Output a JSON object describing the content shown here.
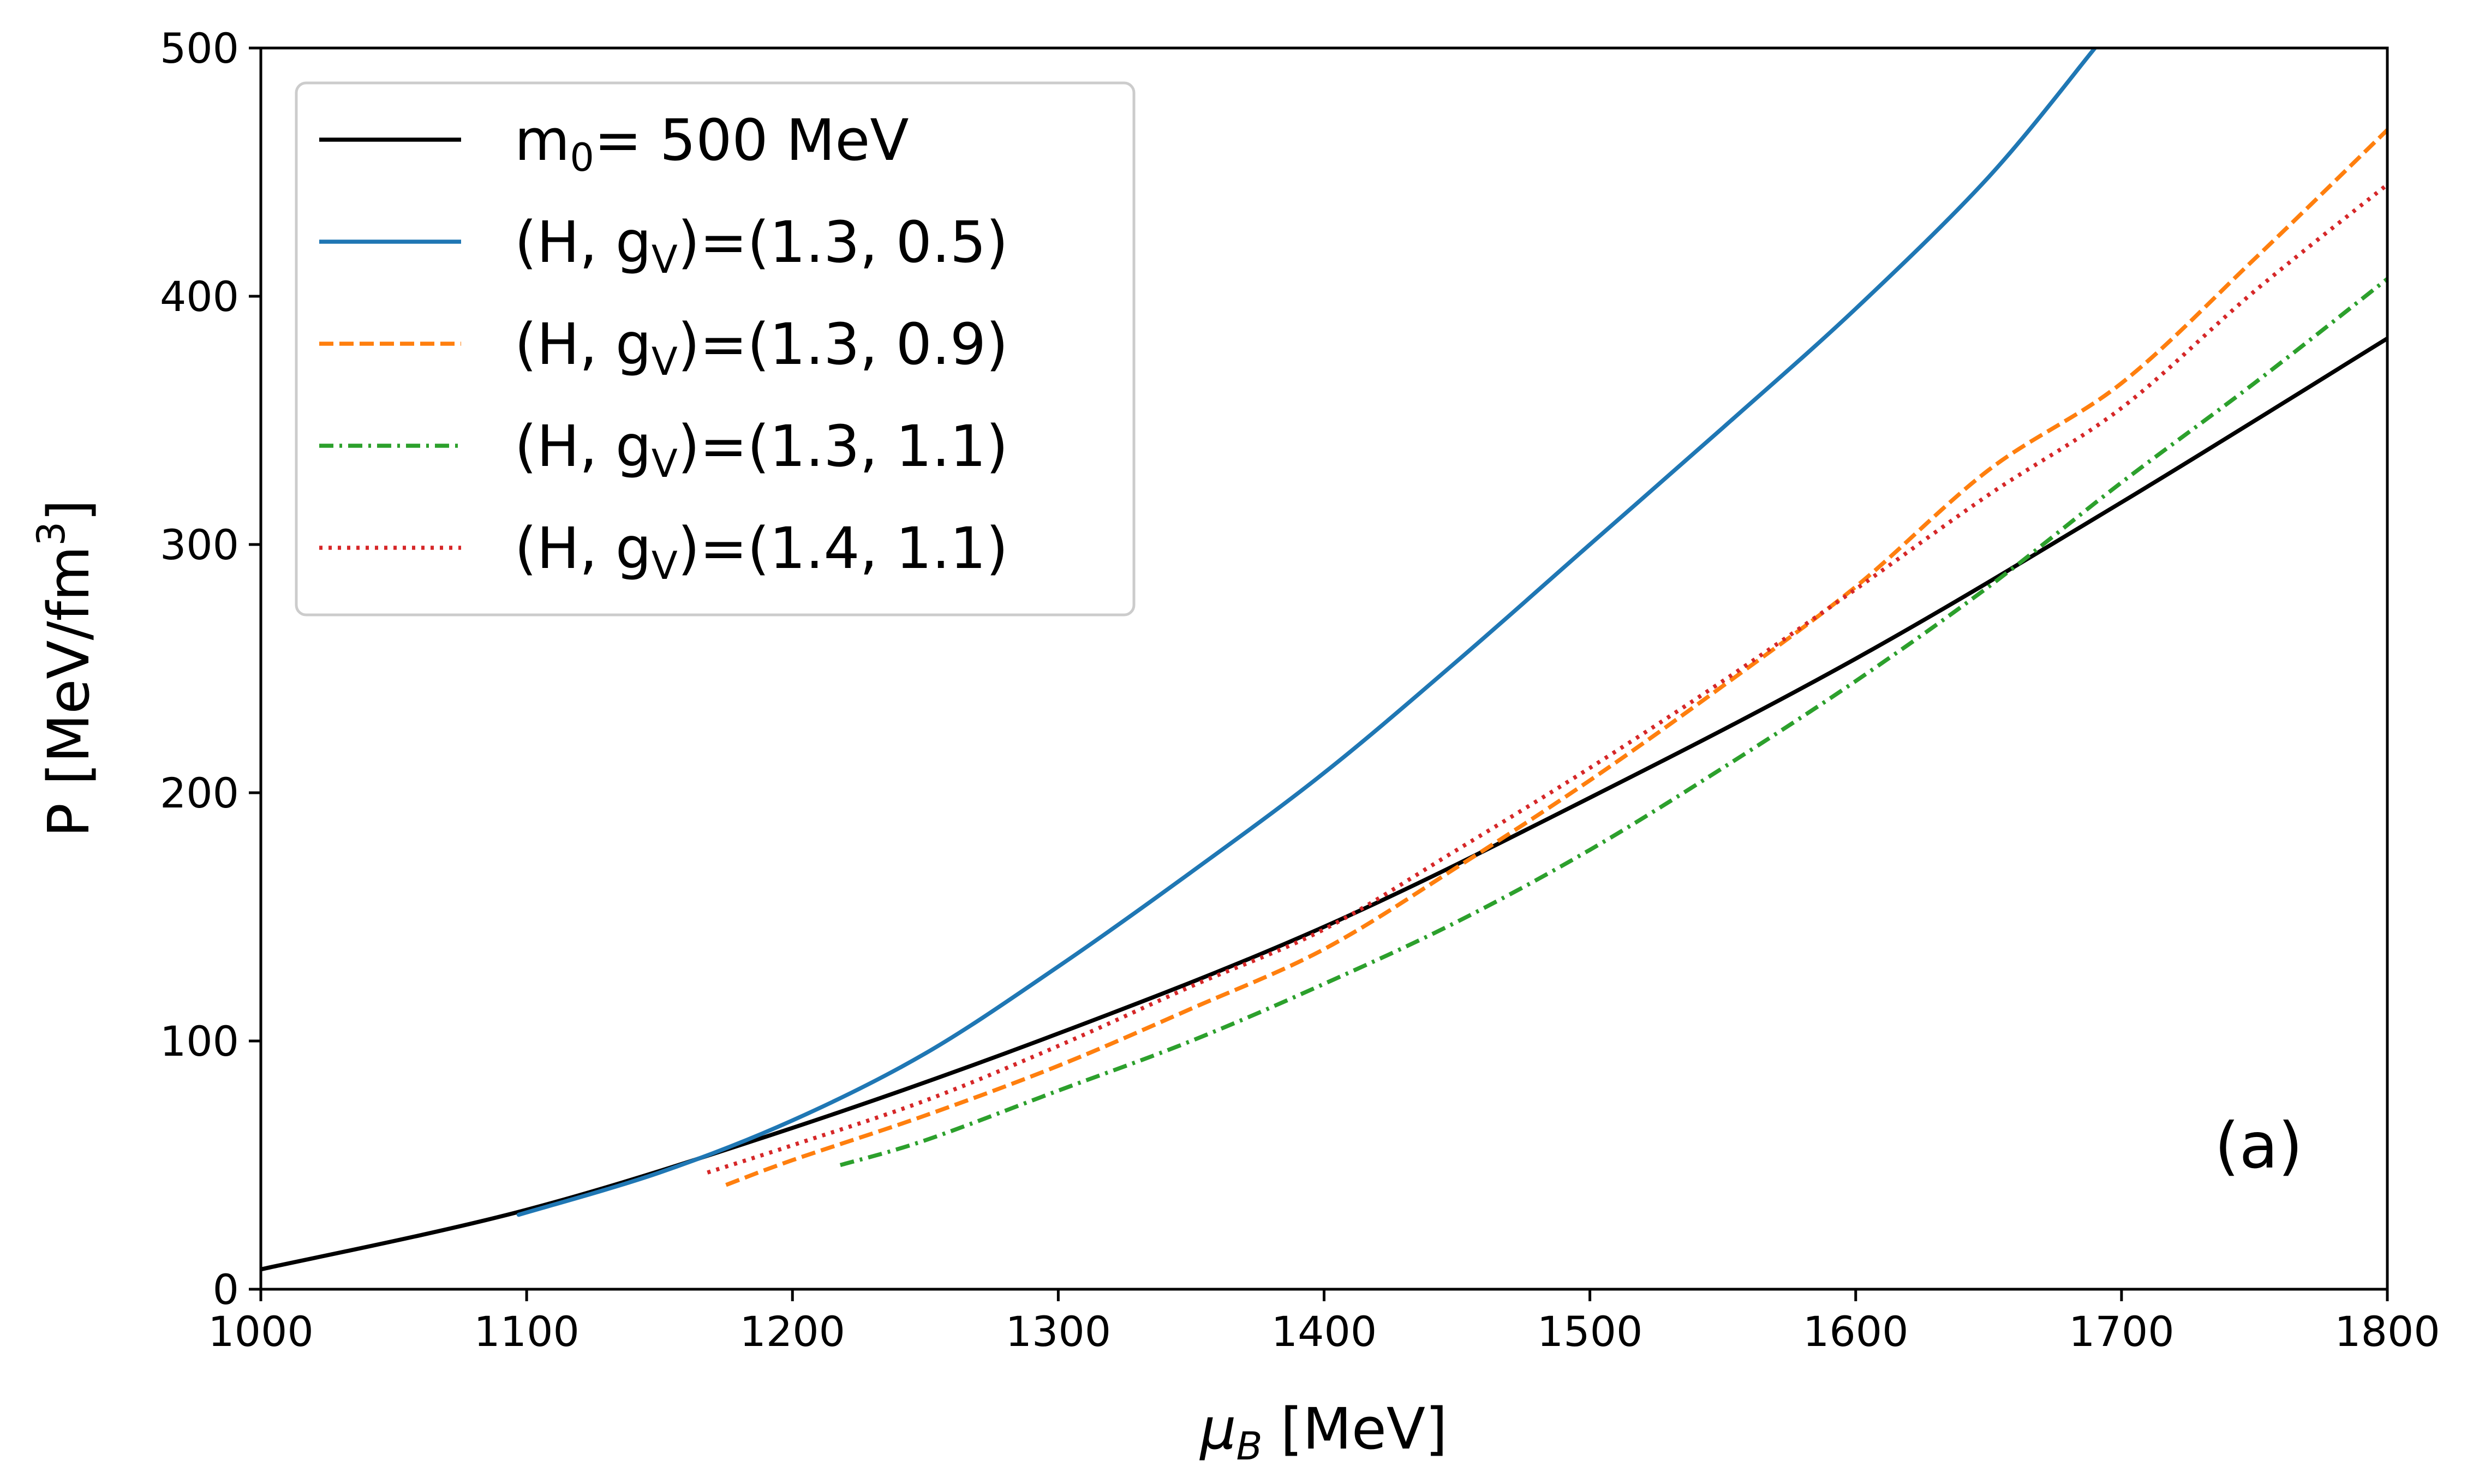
{
  "chart_data": {
    "type": "line",
    "title": "",
    "xlabel": {
      "main": "μ",
      "sub": "B",
      "unit": " [MeV]"
    },
    "ylabel": {
      "main": "P [MeV/fm",
      "sup": "3",
      "end": "]"
    },
    "xlim": [
      1000,
      1800
    ],
    "ylim": [
      0,
      500
    ],
    "xticks": [
      "1000",
      "1100",
      "1200",
      "1300",
      "1400",
      "1500",
      "1600",
      "1700",
      "1800"
    ],
    "yticks": [
      "0",
      "100",
      "200",
      "300",
      "400",
      "500"
    ],
    "grid": false,
    "legend_position": "top-left",
    "annotation": "(a)",
    "series": [
      {
        "id": "m0",
        "legend": {
          "a": "m",
          "sub": "0",
          "b": "= 500 MeV"
        },
        "color": "#000000",
        "dash": "solid",
        "x": [
          1000,
          1100,
          1200,
          1300,
          1400,
          1500,
          1600,
          1700,
          1800
        ],
        "y": [
          8,
          32,
          65,
          103,
          146,
          198,
          254,
          317,
          383
        ]
      },
      {
        "id": "h13-gv05",
        "legend": {
          "a": "(H, g",
          "sub": "V",
          "b": ")=(1.3, 0.5)"
        },
        "color": "#1f77b4",
        "dash": "solid",
        "x": [
          1097,
          1150,
          1200,
          1250,
          1300,
          1350,
          1400,
          1450,
          1500,
          1550,
          1600,
          1650,
          1690
        ],
        "y": [
          30,
          47,
          68,
          95,
          130,
          168,
          208,
          253,
          300,
          347,
          395,
          448,
          500
        ]
      },
      {
        "id": "h13-gv09",
        "legend": {
          "a": "(H, g",
          "sub": "V",
          "b": ")=(1.3, 0.9)"
        },
        "color": "#ff7f0e",
        "dash": "dashed",
        "x": [
          1175,
          1200,
          1250,
          1300,
          1350,
          1400,
          1450,
          1500,
          1550,
          1600,
          1650,
          1700,
          1750,
          1800
        ],
        "y": [
          42,
          52,
          70,
          90,
          113,
          137,
          170,
          205,
          243,
          283,
          330,
          365,
          415,
          467
        ]
      },
      {
        "id": "h13-gv11",
        "legend": {
          "a": "(H, g",
          "sub": "V",
          "b": ")=(1.3, 1.1)"
        },
        "color": "#2ca02c",
        "dash": "dashdot",
        "x": [
          1218,
          1250,
          1300,
          1350,
          1400,
          1450,
          1500,
          1550,
          1600,
          1650,
          1700,
          1750,
          1800
        ],
        "y": [
          50,
          60,
          80,
          100,
          123,
          148,
          177,
          210,
          245,
          283,
          325,
          365,
          407
        ]
      },
      {
        "id": "h14-gv11",
        "legend": {
          "a": "(H, g",
          "sub": "V",
          "b": ")=(1.4, 1.1)"
        },
        "color": "#d62728",
        "dash": "dotted",
        "x": [
          1168,
          1200,
          1250,
          1300,
          1350,
          1400,
          1450,
          1500,
          1550,
          1600,
          1650,
          1700,
          1750,
          1800
        ],
        "y": [
          47,
          58,
          76,
          98,
          122,
          145,
          177,
          210,
          245,
          282,
          320,
          355,
          402,
          445
        ]
      }
    ]
  }
}
